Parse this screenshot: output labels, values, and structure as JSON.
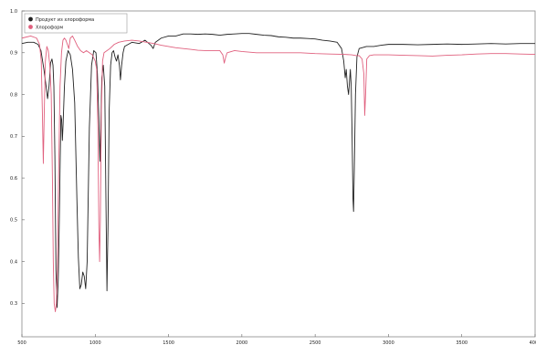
{
  "chart_data": {
    "type": "line",
    "title": "",
    "xlabel": "",
    "ylabel": "",
    "xlim": [
      500,
      4000
    ],
    "ylim": [
      0.22,
      1.0
    ],
    "x_ticks": [
      500,
      1000,
      1500,
      2000,
      2500,
      3000,
      3500,
      4000
    ],
    "y_ticks": [
      1.0,
      0.9,
      0.8,
      0.7,
      0.6,
      0.5,
      0.4,
      0.3
    ],
    "grid": false,
    "legend_position": "top-left",
    "series": [
      {
        "name": "Продукт из хлороформа",
        "color": "#222222",
        "marker": "black-dot",
        "points": [
          [
            500,
            0.922
          ],
          [
            540,
            0.925
          ],
          [
            580,
            0.925
          ],
          [
            610,
            0.92
          ],
          [
            630,
            0.905
          ],
          [
            650,
            0.86
          ],
          [
            665,
            0.82
          ],
          [
            675,
            0.79
          ],
          [
            685,
            0.82
          ],
          [
            695,
            0.875
          ],
          [
            705,
            0.885
          ],
          [
            712,
            0.87
          ],
          [
            718,
            0.82
          ],
          [
            725,
            0.65
          ],
          [
            732,
            0.38
          ],
          [
            740,
            0.29
          ],
          [
            748,
            0.36
          ],
          [
            755,
            0.5
          ],
          [
            760,
            0.62
          ],
          [
            766,
            0.75
          ],
          [
            771,
            0.74
          ],
          [
            776,
            0.69
          ],
          [
            781,
            0.73
          ],
          [
            790,
            0.82
          ],
          [
            800,
            0.88
          ],
          [
            815,
            0.905
          ],
          [
            830,
            0.895
          ],
          [
            845,
            0.86
          ],
          [
            860,
            0.78
          ],
          [
            875,
            0.55
          ],
          [
            885,
            0.41
          ],
          [
            895,
            0.335
          ],
          [
            905,
            0.345
          ],
          [
            915,
            0.375
          ],
          [
            925,
            0.365
          ],
          [
            935,
            0.335
          ],
          [
            945,
            0.4
          ],
          [
            960,
            0.72
          ],
          [
            975,
            0.87
          ],
          [
            990,
            0.905
          ],
          [
            1005,
            0.9
          ],
          [
            1015,
            0.85
          ],
          [
            1025,
            0.74
          ],
          [
            1032,
            0.64
          ],
          [
            1038,
            0.72
          ],
          [
            1045,
            0.84
          ],
          [
            1055,
            0.87
          ],
          [
            1065,
            0.82
          ],
          [
            1073,
            0.55
          ],
          [
            1080,
            0.33
          ],
          [
            1087,
            0.48
          ],
          [
            1095,
            0.76
          ],
          [
            1105,
            0.87
          ],
          [
            1115,
            0.9
          ],
          [
            1125,
            0.905
          ],
          [
            1135,
            0.89
          ],
          [
            1145,
            0.88
          ],
          [
            1155,
            0.895
          ],
          [
            1165,
            0.87
          ],
          [
            1172,
            0.835
          ],
          [
            1180,
            0.87
          ],
          [
            1190,
            0.9
          ],
          [
            1200,
            0.915
          ],
          [
            1250,
            0.925
          ],
          [
            1300,
            0.922
          ],
          [
            1340,
            0.93
          ],
          [
            1380,
            0.918
          ],
          [
            1395,
            0.91
          ],
          [
            1410,
            0.925
          ],
          [
            1450,
            0.935
          ],
          [
            1500,
            0.94
          ],
          [
            1550,
            0.94
          ],
          [
            1600,
            0.945
          ],
          [
            1650,
            0.945
          ],
          [
            1700,
            0.944
          ],
          [
            1750,
            0.945
          ],
          [
            1800,
            0.944
          ],
          [
            1850,
            0.942
          ],
          [
            1900,
            0.944
          ],
          [
            1950,
            0.945
          ],
          [
            2000,
            0.946
          ],
          [
            2050,
            0.946
          ],
          [
            2100,
            0.944
          ],
          [
            2150,
            0.942
          ],
          [
            2200,
            0.941
          ],
          [
            2250,
            0.938
          ],
          [
            2300,
            0.937
          ],
          [
            2350,
            0.935
          ],
          [
            2400,
            0.935
          ],
          [
            2450,
            0.934
          ],
          [
            2500,
            0.933
          ],
          [
            2550,
            0.93
          ],
          [
            2600,
            0.928
          ],
          [
            2650,
            0.925
          ],
          [
            2680,
            0.91
          ],
          [
            2695,
            0.88
          ],
          [
            2705,
            0.84
          ],
          [
            2712,
            0.86
          ],
          [
            2720,
            0.82
          ],
          [
            2728,
            0.8
          ],
          [
            2734,
            0.83
          ],
          [
            2740,
            0.86
          ],
          [
            2746,
            0.82
          ],
          [
            2752,
            0.7
          ],
          [
            2758,
            0.55
          ],
          [
            2762,
            0.52
          ],
          [
            2767,
            0.62
          ],
          [
            2775,
            0.8
          ],
          [
            2785,
            0.89
          ],
          [
            2800,
            0.91
          ],
          [
            2850,
            0.915
          ],
          [
            2900,
            0.915
          ],
          [
            2950,
            0.918
          ],
          [
            3000,
            0.92
          ],
          [
            3100,
            0.92
          ],
          [
            3200,
            0.919
          ],
          [
            3300,
            0.92
          ],
          [
            3400,
            0.921
          ],
          [
            3500,
            0.92
          ],
          [
            3600,
            0.921
          ],
          [
            3700,
            0.922
          ],
          [
            3800,
            0.921
          ],
          [
            3900,
            0.922
          ],
          [
            4000,
            0.922
          ]
        ]
      },
      {
        "name": "Хлороформ",
        "color": "#e0607e",
        "marker": "pink-dot",
        "points": [
          [
            500,
            0.935
          ],
          [
            560,
            0.94
          ],
          [
            600,
            0.935
          ],
          [
            620,
            0.92
          ],
          [
            632,
            0.88
          ],
          [
            640,
            0.75
          ],
          [
            646,
            0.635
          ],
          [
            652,
            0.75
          ],
          [
            660,
            0.88
          ],
          [
            670,
            0.915
          ],
          [
            680,
            0.905
          ],
          [
            690,
            0.87
          ],
          [
            700,
            0.8
          ],
          [
            708,
            0.6
          ],
          [
            714,
            0.4
          ],
          [
            720,
            0.3
          ],
          [
            728,
            0.28
          ],
          [
            735,
            0.3
          ],
          [
            742,
            0.38
          ],
          [
            750,
            0.6
          ],
          [
            760,
            0.82
          ],
          [
            770,
            0.9
          ],
          [
            780,
            0.93
          ],
          [
            790,
            0.935
          ],
          [
            800,
            0.93
          ],
          [
            810,
            0.92
          ],
          [
            820,
            0.91
          ],
          [
            830,
            0.935
          ],
          [
            845,
            0.94
          ],
          [
            860,
            0.93
          ],
          [
            880,
            0.915
          ],
          [
            900,
            0.905
          ],
          [
            920,
            0.9
          ],
          [
            940,
            0.905
          ],
          [
            960,
            0.9
          ],
          [
            980,
            0.895
          ],
          [
            1000,
            0.88
          ],
          [
            1010,
            0.86
          ],
          [
            1018,
            0.72
          ],
          [
            1025,
            0.48
          ],
          [
            1030,
            0.4
          ],
          [
            1035,
            0.5
          ],
          [
            1042,
            0.76
          ],
          [
            1050,
            0.88
          ],
          [
            1060,
            0.9
          ],
          [
            1080,
            0.905
          ],
          [
            1100,
            0.91
          ],
          [
            1130,
            0.92
          ],
          [
            1160,
            0.925
          ],
          [
            1200,
            0.928
          ],
          [
            1250,
            0.93
          ],
          [
            1300,
            0.928
          ],
          [
            1350,
            0.925
          ],
          [
            1400,
            0.922
          ],
          [
            1450,
            0.918
          ],
          [
            1500,
            0.915
          ],
          [
            1550,
            0.912
          ],
          [
            1600,
            0.91
          ],
          [
            1650,
            0.908
          ],
          [
            1700,
            0.906
          ],
          [
            1750,
            0.905
          ],
          [
            1800,
            0.905
          ],
          [
            1850,
            0.905
          ],
          [
            1870,
            0.895
          ],
          [
            1880,
            0.875
          ],
          [
            1890,
            0.89
          ],
          [
            1900,
            0.9
          ],
          [
            1950,
            0.905
          ],
          [
            2000,
            0.903
          ],
          [
            2100,
            0.9
          ],
          [
            2200,
            0.9
          ],
          [
            2300,
            0.9
          ],
          [
            2400,
            0.9
          ],
          [
            2500,
            0.898
          ],
          [
            2600,
            0.897
          ],
          [
            2700,
            0.896
          ],
          [
            2750,
            0.895
          ],
          [
            2780,
            0.893
          ],
          [
            2800,
            0.893
          ],
          [
            2820,
            0.885
          ],
          [
            2832,
            0.85
          ],
          [
            2838,
            0.75
          ],
          [
            2844,
            0.8
          ],
          [
            2852,
            0.885
          ],
          [
            2870,
            0.893
          ],
          [
            2900,
            0.895
          ],
          [
            3000,
            0.895
          ],
          [
            3100,
            0.894
          ],
          [
            3200,
            0.893
          ],
          [
            3300,
            0.892
          ],
          [
            3400,
            0.894
          ],
          [
            3500,
            0.895
          ],
          [
            3600,
            0.897
          ],
          [
            3700,
            0.898
          ],
          [
            3800,
            0.898
          ],
          [
            3900,
            0.897
          ],
          [
            4000,
            0.896
          ]
        ]
      }
    ]
  }
}
